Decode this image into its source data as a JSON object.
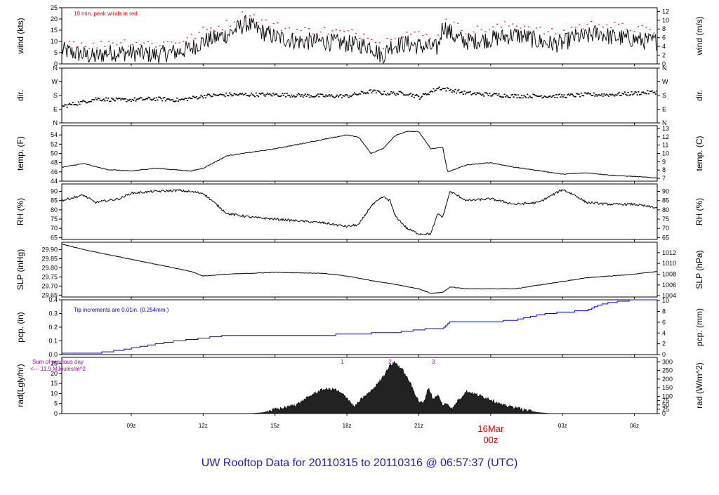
{
  "footer_title": "UW Rooftop Data for 20110315  to  20110316 @ 06:57:37  (UTC)",
  "colors": {
    "line": "#000000",
    "peak": "#ff0000",
    "precip": "#0000ff",
    "note_blue": "#0000cc",
    "rad_note": "#b000b0",
    "date_label": "#dd0000",
    "title": "#1a1adb"
  },
  "x_axis": {
    "ticks": [
      {
        "label": "09z",
        "h": 9
      },
      {
        "label": "12z",
        "h": 12
      },
      {
        "label": "15z",
        "h": 15
      },
      {
        "label": "18z",
        "h": 18
      },
      {
        "label": "21z",
        "h": 21
      },
      {
        "label": "03z",
        "h": 27
      },
      {
        "label": "06z",
        "h": 30
      }
    ],
    "date_label": {
      "line1": "16Mar",
      "line2": "00z",
      "h": 24
    },
    "range_hours": [
      6.1,
      30.95
    ]
  },
  "chart_data": [
    {
      "type": "line",
      "id": "wind",
      "ylabel_left": "wind (kts)",
      "ylabel_right": "wind (m/s)",
      "ylim": [
        0,
        25
      ],
      "ticks_left": [
        "0",
        "5",
        "10",
        "15",
        "20",
        "25"
      ],
      "ticks_right": [
        "0",
        "2",
        "4",
        "6",
        "8",
        "10",
        "12"
      ],
      "right_tick_values_in_left_units": [
        0,
        3.888,
        7.776,
        11.664,
        15.552,
        19.44,
        23.328
      ],
      "note": "10 min. peak winds in red",
      "anchors": [
        [
          6.1,
          6
        ],
        [
          6.8,
          4.5
        ],
        [
          7.5,
          3
        ],
        [
          8.0,
          5
        ],
        [
          9.0,
          5
        ],
        [
          10.0,
          4
        ],
        [
          11.0,
          5.5
        ],
        [
          11.5,
          7
        ],
        [
          12.0,
          10
        ],
        [
          13.0,
          13
        ],
        [
          13.8,
          18
        ],
        [
          14.5,
          14
        ],
        [
          15.0,
          12
        ],
        [
          16.0,
          10
        ],
        [
          17.0,
          10
        ],
        [
          18.0,
          9
        ],
        [
          19.0,
          8
        ],
        [
          19.5,
          3
        ],
        [
          19.8,
          8
        ],
        [
          20.5,
          9
        ],
        [
          21.0,
          8
        ],
        [
          21.8,
          7
        ],
        [
          22.0,
          17
        ],
        [
          22.5,
          12
        ],
        [
          23.0,
          10
        ],
        [
          24.0,
          11
        ],
        [
          25.0,
          13
        ],
        [
          25.5,
          12
        ],
        [
          26.0,
          10
        ],
        [
          26.5,
          9
        ],
        [
          27.0,
          9
        ],
        [
          27.5,
          12
        ],
        [
          28.0,
          12
        ],
        [
          28.5,
          14
        ],
        [
          29.0,
          12
        ],
        [
          30.0,
          11
        ],
        [
          30.5,
          10
        ],
        [
          30.95,
          10
        ]
      ],
      "series": [
        {
          "values_note": "5-minute averages"
        },
        {
          "name": "",
          "values_note": "10 min. peak winds"
        }
      ]
    },
    {
      "type": "scatter",
      "id": "dir",
      "ylabel_left": "dir.",
      "ylabel_right": "dir.",
      "ylim": [
        0,
        4
      ],
      "ticks_left": [
        "N",
        "E",
        "S",
        "W",
        "N"
      ],
      "ticks_right": [
        "N",
        "E",
        "S",
        "W",
        "N"
      ],
      "anchors": [
        [
          6.1,
          1.25
        ],
        [
          6.8,
          1.5
        ],
        [
          7.5,
          1.8
        ],
        [
          8.5,
          1.7
        ],
        [
          10,
          1.8
        ],
        [
          11,
          1.7
        ],
        [
          12,
          2.0
        ],
        [
          13,
          2.1
        ],
        [
          15,
          2.1
        ],
        [
          17,
          2.0
        ],
        [
          18,
          2.0
        ],
        [
          19,
          2.35
        ],
        [
          19.5,
          2.2
        ],
        [
          20.5,
          2.2
        ],
        [
          21.0,
          1.9
        ],
        [
          21.8,
          2.6
        ],
        [
          23,
          2.2
        ],
        [
          25,
          2.0
        ],
        [
          27,
          2.0
        ],
        [
          28,
          2.1
        ],
        [
          29,
          2.1
        ],
        [
          30,
          2.2
        ],
        [
          30.95,
          2.3
        ]
      ]
    },
    {
      "type": "line",
      "id": "temp",
      "ylabel_left": "temp. (F)",
      "ylabel_right": "temp. (C)",
      "ylim": [
        44,
        56
      ],
      "ticks_left": [
        "44",
        "46",
        "48",
        "50",
        "52",
        "54"
      ],
      "ticks_right": [
        "7",
        "8",
        "9",
        "10",
        "11",
        "12",
        "13"
      ],
      "right_tick_values_in_left_units": [
        44.6,
        46.4,
        48.2,
        50.0,
        51.8,
        53.6,
        55.4
      ],
      "anchors": [
        [
          6.1,
          47
        ],
        [
          7.0,
          47.8
        ],
        [
          8.0,
          46.5
        ],
        [
          9.0,
          46.2
        ],
        [
          10.0,
          46.8
        ],
        [
          11.5,
          46.2
        ],
        [
          12.0,
          46.8
        ],
        [
          13.0,
          49.5
        ],
        [
          15.0,
          51
        ],
        [
          17.0,
          53
        ],
        [
          18.0,
          54
        ],
        [
          18.5,
          53.5
        ],
        [
          19.0,
          50
        ],
        [
          19.5,
          51
        ],
        [
          20.0,
          53.8
        ],
        [
          20.5,
          54.8
        ],
        [
          21.0,
          54.7
        ],
        [
          21.5,
          51
        ],
        [
          22.0,
          51.3
        ],
        [
          22.2,
          46
        ],
        [
          23.0,
          47.5
        ],
        [
          24.0,
          48
        ],
        [
          25.0,
          47
        ],
        [
          26.0,
          46.3
        ],
        [
          27.0,
          45.5
        ],
        [
          28.0,
          45.8
        ],
        [
          29.0,
          45.3
        ],
        [
          30.0,
          45
        ],
        [
          30.95,
          44.7
        ]
      ]
    },
    {
      "type": "line",
      "id": "rh",
      "ylabel_left": "RH (%)",
      "ylabel_right": "RH (%)",
      "ylim": [
        64,
        94
      ],
      "ticks_left": [
        "65",
        "70",
        "75",
        "80",
        "85",
        "90"
      ],
      "ticks_right": [
        "65",
        "70",
        "75",
        "80",
        "85",
        "90"
      ],
      "right_tick_values_in_left_units": [
        65,
        70,
        75,
        80,
        85,
        90
      ],
      "anchors": [
        [
          6.1,
          85
        ],
        [
          7.0,
          88
        ],
        [
          7.5,
          84
        ],
        [
          8.5,
          86
        ],
        [
          9.0,
          89
        ],
        [
          10.0,
          90
        ],
        [
          11.0,
          90.5
        ],
        [
          12.0,
          89
        ],
        [
          13.0,
          78
        ],
        [
          14.0,
          76
        ],
        [
          16.0,
          74
        ],
        [
          17.0,
          73
        ],
        [
          18.0,
          71
        ],
        [
          18.5,
          72
        ],
        [
          19.0,
          82
        ],
        [
          19.5,
          87
        ],
        [
          19.8,
          85
        ],
        [
          20.0,
          77
        ],
        [
          20.5,
          70
        ],
        [
          21.0,
          67
        ],
        [
          21.5,
          67
        ],
        [
          21.8,
          78
        ],
        [
          22.0,
          76
        ],
        [
          22.3,
          90
        ],
        [
          23.0,
          85
        ],
        [
          24.0,
          86
        ],
        [
          25.0,
          83
        ],
        [
          26.0,
          84
        ],
        [
          27.0,
          91
        ],
        [
          27.5,
          88
        ],
        [
          28.0,
          84
        ],
        [
          29.0,
          83
        ],
        [
          30.0,
          83
        ],
        [
          30.95,
          81
        ]
      ]
    },
    {
      "type": "line",
      "id": "slp",
      "ylabel_left": "SLP (inHg)",
      "ylabel_right": "SLP (hPa)",
      "ylim": [
        29.64,
        29.94
      ],
      "ticks_left": [
        "29.65",
        "29.70",
        "29.75",
        "29.80",
        "29.85",
        "29.90"
      ],
      "ticks_right": [
        "1004",
        "1006",
        "1008",
        "1010",
        "1012"
      ],
      "right_tick_values_in_left_units": [
        29.647,
        29.706,
        29.765,
        29.824,
        29.883
      ],
      "anchors": [
        [
          6.1,
          29.93
        ],
        [
          7.0,
          29.9
        ],
        [
          8.5,
          29.86
        ],
        [
          10.0,
          29.82
        ],
        [
          11.5,
          29.78
        ],
        [
          12.0,
          29.755
        ],
        [
          13.0,
          29.765
        ],
        [
          15.0,
          29.775
        ],
        [
          17.0,
          29.77
        ],
        [
          18.0,
          29.755
        ],
        [
          19.0,
          29.73
        ],
        [
          20.0,
          29.71
        ],
        [
          21.0,
          29.685
        ],
        [
          21.5,
          29.66
        ],
        [
          22.0,
          29.665
        ],
        [
          22.3,
          29.695
        ],
        [
          23.0,
          29.685
        ],
        [
          24.0,
          29.685
        ],
        [
          25.0,
          29.685
        ],
        [
          26.0,
          29.705
        ],
        [
          27.0,
          29.725
        ],
        [
          28.0,
          29.745
        ],
        [
          29.0,
          29.755
        ],
        [
          30.0,
          29.765
        ],
        [
          30.95,
          29.78
        ]
      ]
    },
    {
      "type": "line",
      "id": "pcp",
      "ylabel_left": "pcp. (in)",
      "ylabel_right": "pcp. (mm)",
      "ylim": [
        0,
        0.4
      ],
      "ticks_left": [
        "0.0",
        "0.1",
        "0.2",
        "0.3",
        "0.4"
      ],
      "ticks_right": [
        "0",
        "2",
        "4",
        "6",
        "8",
        "10"
      ],
      "right_tick_values_in_left_units": [
        0,
        0.0787,
        0.1575,
        0.2362,
        0.315,
        0.3937
      ],
      "note": "Tip increments are 0.01in. (0.254mm.)",
      "anchors": [
        [
          6.1,
          0.005
        ],
        [
          7.5,
          0.01
        ],
        [
          8.5,
          0.03
        ],
        [
          9.5,
          0.06
        ],
        [
          10.5,
          0.09
        ],
        [
          11.0,
          0.1
        ],
        [
          12.0,
          0.12
        ],
        [
          13.0,
          0.14
        ],
        [
          14.0,
          0.14
        ],
        [
          17.0,
          0.14
        ],
        [
          18.0,
          0.15
        ],
        [
          20.0,
          0.16
        ],
        [
          21.0,
          0.18
        ],
        [
          21.5,
          0.19
        ],
        [
          22.0,
          0.19
        ],
        [
          22.3,
          0.24
        ],
        [
          24.0,
          0.24
        ],
        [
          25.0,
          0.25
        ],
        [
          26.0,
          0.29
        ],
        [
          27.0,
          0.31
        ],
        [
          28.0,
          0.32
        ],
        [
          28.5,
          0.36
        ],
        [
          29.0,
          0.38
        ],
        [
          29.5,
          0.39
        ],
        [
          30.0,
          0.4
        ],
        [
          30.95,
          0.4
        ]
      ]
    },
    {
      "type": "area",
      "id": "rad",
      "ylabel_left": "rad(Lgly/hr)",
      "ylabel_right": "rad (W/m^2)",
      "ylim": [
        0,
        28
      ],
      "ticks_left": [
        "0",
        "5",
        "10",
        "15",
        "20",
        "25"
      ],
      "ticks_right": [
        "0",
        "25",
        "50",
        "75",
        "100",
        "150",
        "200",
        "250",
        "300"
      ],
      "right_tick_values_in_left_units": [
        0,
        2.15,
        4.3,
        6.45,
        8.6,
        12.9,
        17.2,
        21.5,
        25.8
      ],
      "note_line1": "Sum of previous day",
      "note_line2": "<--- 11.9 MJoules/m^2",
      "markers": [
        {
          "label": "1",
          "h": 17.8
        },
        {
          "label": "2",
          "h": 19.8
        },
        {
          "label": "3",
          "h": 21.6
        }
      ],
      "anchors": [
        [
          14.0,
          0
        ],
        [
          14.5,
          0.5
        ],
        [
          15.0,
          2
        ],
        [
          15.5,
          3
        ],
        [
          16.0,
          5
        ],
        [
          16.5,
          9
        ],
        [
          17.0,
          12
        ],
        [
          17.5,
          12
        ],
        [
          18.0,
          8
        ],
        [
          18.3,
          3
        ],
        [
          18.6,
          7
        ],
        [
          19.0,
          11
        ],
        [
          19.3,
          15
        ],
        [
          19.6,
          20
        ],
        [
          19.8,
          24
        ],
        [
          20.0,
          25.5
        ],
        [
          20.3,
          22
        ],
        [
          20.6,
          16
        ],
        [
          21.0,
          6
        ],
        [
          21.2,
          5
        ],
        [
          21.4,
          13
        ],
        [
          21.6,
          7
        ],
        [
          21.8,
          9
        ],
        [
          22.0,
          4
        ],
        [
          22.2,
          5
        ],
        [
          22.4,
          2
        ],
        [
          22.6,
          6
        ],
        [
          23.0,
          11
        ],
        [
          23.5,
          9
        ],
        [
          24.0,
          7
        ],
        [
          24.5,
          4
        ],
        [
          25.0,
          3
        ],
        [
          25.5,
          1.5
        ],
        [
          26.0,
          0.5
        ],
        [
          26.5,
          0
        ]
      ]
    }
  ]
}
